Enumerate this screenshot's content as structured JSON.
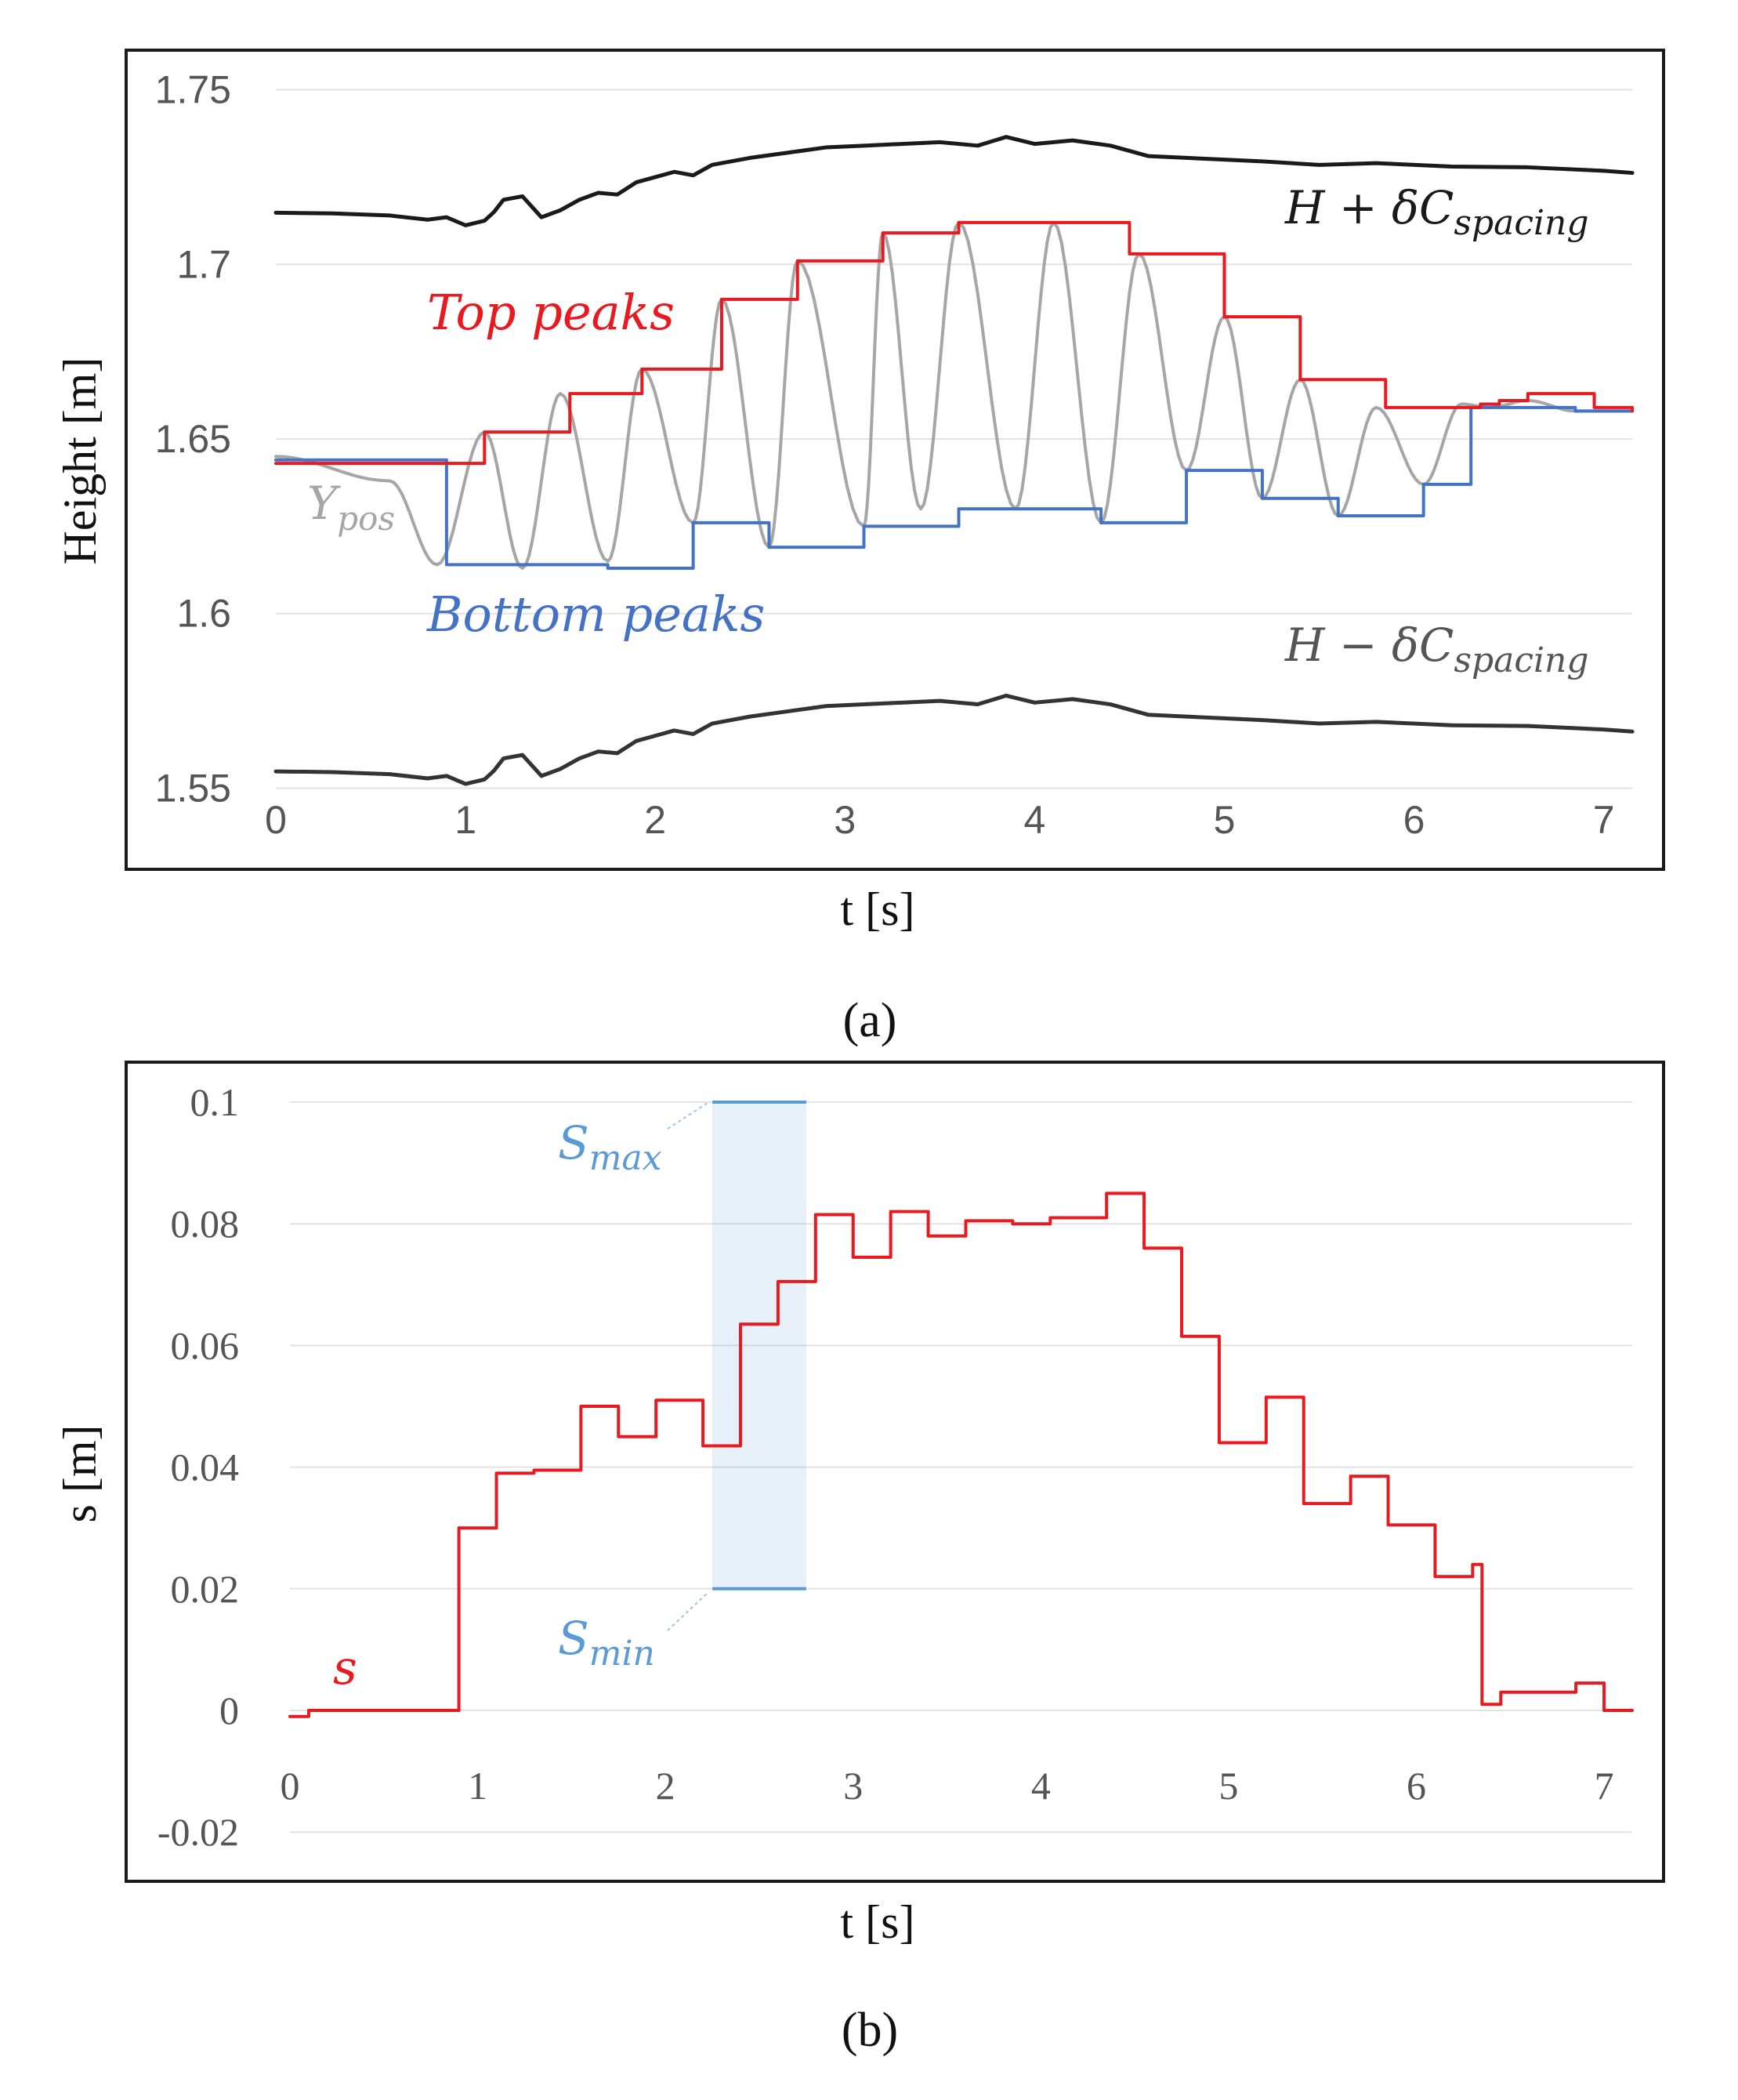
{
  "figure": {
    "panel_a_label": "(a)",
    "panel_b_label": "(b)"
  },
  "chart_data": [
    {
      "type": "line",
      "panel": "a",
      "title": "",
      "xlabel": "t [s]",
      "ylabel": "Height [m]",
      "xlim": [
        0,
        7.2
      ],
      "ylim": [
        1.54,
        1.76
      ],
      "xticks": [
        "0",
        "1",
        "2",
        "3",
        "4",
        "5",
        "6",
        "7"
      ],
      "yticks": [
        "1.55",
        "1.6",
        "1.65",
        "1.7",
        "1.75"
      ],
      "grid": true,
      "annotations": {
        "upper_bound": "H + δC",
        "upper_bound_sub": "spacing",
        "lower_bound": "H − δC",
        "lower_bound_sub": "spacing",
        "top_peaks": "Top peaks",
        "bottom_peaks": "Bottom peaks",
        "ypos": "Y",
        "ypos_sub": "pos"
      },
      "series": [
        {
          "name": "H + δC_spacing",
          "color": "#1a1a1a",
          "x": [
            0,
            0.3,
            0.6,
            0.8,
            0.9,
            1.0,
            1.1,
            1.15,
            1.2,
            1.3,
            1.4,
            1.5,
            1.6,
            1.7,
            1.8,
            1.9,
            2.0,
            2.1,
            2.2,
            2.3,
            2.5,
            2.7,
            2.9,
            3.1,
            3.3,
            3.5,
            3.7,
            3.85,
            4.0,
            4.2,
            4.4,
            4.6,
            4.8,
            5.0,
            5.2,
            5.5,
            5.8,
            6.2,
            6.6,
            7.0,
            7.15
          ],
          "y": [
            1.7148,
            1.7146,
            1.714,
            1.7128,
            1.7135,
            1.7112,
            1.7125,
            1.715,
            1.7185,
            1.7195,
            1.7135,
            1.7155,
            1.7185,
            1.7205,
            1.72,
            1.7235,
            1.725,
            1.7265,
            1.7255,
            1.7285,
            1.7305,
            1.732,
            1.7335,
            1.734,
            1.7345,
            1.735,
            1.734,
            1.7365,
            1.7345,
            1.7355,
            1.734,
            1.731,
            1.7305,
            1.73,
            1.7295,
            1.7285,
            1.729,
            1.728,
            1.7278,
            1.7268,
            1.7262
          ]
        },
        {
          "name": "H − δC_spacing",
          "color": "#333333",
          "x": [
            0,
            0.3,
            0.6,
            0.8,
            0.9,
            1.0,
            1.1,
            1.15,
            1.2,
            1.3,
            1.4,
            1.5,
            1.6,
            1.7,
            1.8,
            1.9,
            2.0,
            2.1,
            2.2,
            2.3,
            2.5,
            2.7,
            2.9,
            3.1,
            3.3,
            3.5,
            3.7,
            3.85,
            4.0,
            4.2,
            4.4,
            4.6,
            4.8,
            5.0,
            5.2,
            5.5,
            5.8,
            6.2,
            6.6,
            7.0,
            7.15
          ],
          "y": [
            1.5548,
            1.5546,
            1.554,
            1.5528,
            1.5535,
            1.5512,
            1.5525,
            1.555,
            1.5585,
            1.5595,
            1.5535,
            1.5555,
            1.5585,
            1.5605,
            1.56,
            1.5635,
            1.565,
            1.5665,
            1.5655,
            1.5685,
            1.5705,
            1.572,
            1.5735,
            1.574,
            1.5745,
            1.575,
            1.574,
            1.5765,
            1.5745,
            1.5755,
            1.574,
            1.571,
            1.5705,
            1.57,
            1.5695,
            1.5685,
            1.569,
            1.568,
            1.5678,
            1.5668,
            1.5662
          ]
        },
        {
          "name": "Top peaks",
          "color": "#e8191f",
          "step": true,
          "x": [
            0,
            0.9,
            1.1,
            1.55,
            1.93,
            2.35,
            2.75,
            3.2,
            3.6,
            4.5,
            5.0,
            5.4,
            5.85,
            6.35,
            6.45,
            6.6,
            6.95,
            7.15
          ],
          "y": [
            1.643,
            1.643,
            1.652,
            1.663,
            1.67,
            1.69,
            1.701,
            1.709,
            1.712,
            1.703,
            1.685,
            1.667,
            1.659,
            1.66,
            1.661,
            1.663,
            1.659,
            1.658
          ]
        },
        {
          "name": "Bottom peaks",
          "color": "#4472c4",
          "step": true,
          "x": [
            0,
            0.9,
            1.75,
            2.2,
            2.6,
            3.1,
            3.6,
            4.35,
            4.8,
            5.2,
            5.6,
            6.05,
            6.3,
            6.85,
            7.15
          ],
          "y": [
            1.644,
            1.614,
            1.613,
            1.626,
            1.619,
            1.625,
            1.63,
            1.626,
            1.641,
            1.633,
            1.628,
            1.637,
            1.659,
            1.658,
            1.658
          ],
          "descriptive_note": "step after each x"
        },
        {
          "name": "Ypos",
          "color": "#a6a6a6",
          "oscillation_peaks_t": [
            0,
            0.6,
            0.85,
            1.1,
            1.3,
            1.5,
            1.75,
            1.93,
            2.2,
            2.35,
            2.6,
            2.75,
            3.1,
            3.2,
            3.4,
            3.6,
            3.9,
            4.1,
            4.35,
            4.55,
            4.8,
            5.0,
            5.2,
            5.4,
            5.6,
            5.8,
            6.05,
            6.25,
            6.4,
            6.6,
            6.85,
            7.15
          ],
          "oscillation_peaks_y": [
            1.645,
            1.638,
            1.614,
            1.652,
            1.613,
            1.663,
            1.615,
            1.67,
            1.626,
            1.69,
            1.619,
            1.701,
            1.625,
            1.709,
            1.63,
            1.712,
            1.63,
            1.712,
            1.626,
            1.703,
            1.641,
            1.685,
            1.633,
            1.667,
            1.628,
            1.659,
            1.637,
            1.66,
            1.659,
            1.661,
            1.658,
            1.658
          ]
        }
      ]
    },
    {
      "type": "line",
      "panel": "b",
      "title": "",
      "xlabel": "t [s]",
      "ylabel": "s [m]",
      "xlim": [
        0,
        7.15
      ],
      "ylim": [
        -0.025,
        0.105
      ],
      "xticks": [
        "0",
        "1",
        "2",
        "3",
        "4",
        "5",
        "6",
        "7"
      ],
      "yticks": [
        "-0.02",
        "0",
        "0.02",
        "0.04",
        "0.06",
        "0.08",
        "0.1"
      ],
      "grid": true,
      "annotations": {
        "s_label": "s",
        "smax_label": "S",
        "smax_sub": "max",
        "smin_label": "S",
        "smin_sub": "min"
      },
      "band": {
        "x_start": 2.25,
        "x_end": 2.75,
        "s_min": 0.02,
        "s_max": 0.1,
        "color": "#5b9bd5"
      },
      "series": [
        {
          "name": "s",
          "color": "#e8191f",
          "step": true,
          "x": [
            0,
            0.1,
            0.9,
            1.1,
            1.3,
            1.55,
            1.75,
            1.95,
            2.2,
            2.4,
            2.6,
            2.8,
            3.0,
            3.2,
            3.4,
            3.6,
            3.85,
            4.05,
            4.35,
            4.55,
            4.75,
            4.95,
            5.2,
            5.4,
            5.65,
            5.85,
            6.1,
            6.3,
            6.35,
            6.45,
            6.6,
            6.85,
            7.0,
            7.15
          ],
          "y": [
            -0.001,
            0.0,
            0.03,
            0.039,
            0.0395,
            0.05,
            0.045,
            0.051,
            0.0435,
            0.0635,
            0.0705,
            0.0815,
            0.0745,
            0.082,
            0.078,
            0.0805,
            0.08,
            0.081,
            0.085,
            0.076,
            0.0615,
            0.044,
            0.0515,
            0.034,
            0.0385,
            0.0305,
            0.022,
            0.024,
            0.001,
            0.003,
            0.003,
            0.0045,
            0.0,
            0.0
          ]
        }
      ]
    }
  ]
}
